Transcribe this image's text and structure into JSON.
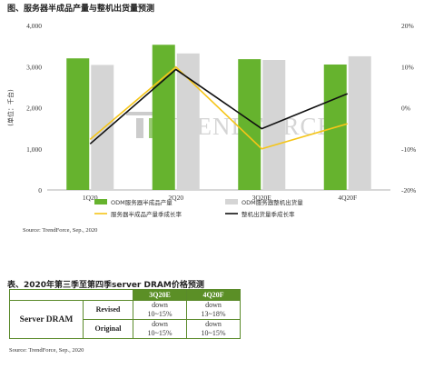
{
  "page": {
    "chart_title": "图、服务器半成品产量与整机出货量预测",
    "chart_source": "Source: TrendForce, Sep., 2020",
    "table_title": "表、2020年第三季至第四季server DRAM价格预测",
    "table_source": "Source: TrendForce, Sep., 2020",
    "watermark": "TRENDFORCE"
  },
  "chart_data": {
    "type": "bar",
    "categories": [
      "1Q20",
      "2Q20",
      "3Q20E",
      "4Q20F"
    ],
    "ylabel": "(单位：千台)",
    "ylim": [
      0,
      4000
    ],
    "yticks": [
      "0",
      "1,000",
      "2,000",
      "3,000",
      "4,000"
    ],
    "y2lim": [
      -20,
      20
    ],
    "y2ticks": [
      "-20%",
      "-10%",
      "0%",
      "10%",
      "20%"
    ],
    "grid": false,
    "legend_position": "bottom",
    "series": [
      {
        "name": "ODM服务器半成品产量",
        "kind": "bar",
        "axis": "left",
        "color": "#66b32e",
        "values": [
          3200,
          3530,
          3180,
          3050
        ]
      },
      {
        "name": "ODM服务器整机出货量",
        "kind": "bar",
        "axis": "left",
        "color": "#d5d5d5",
        "values": [
          3040,
          3320,
          3160,
          3250
        ]
      },
      {
        "name": "服务器半成品产量季成长率",
        "kind": "line",
        "axis": "right",
        "color": "#f5c518",
        "values": [
          -7.7,
          9.9,
          -10,
          -3.9
        ]
      },
      {
        "name": "整机出货量季成长率",
        "kind": "line",
        "axis": "right",
        "color": "#111111",
        "values": [
          -8.8,
          9.3,
          -5.1,
          3.4
        ]
      }
    ]
  },
  "table": {
    "columns": [
      "3Q20E",
      "4Q20F"
    ],
    "row_header": "Server DRAM",
    "rows": [
      {
        "label": "Revised",
        "values": [
          "down 10~15%",
          "down 13~18%"
        ]
      },
      {
        "label": "Original",
        "values": [
          "down 10~15%",
          "down 10~15%"
        ]
      }
    ]
  }
}
